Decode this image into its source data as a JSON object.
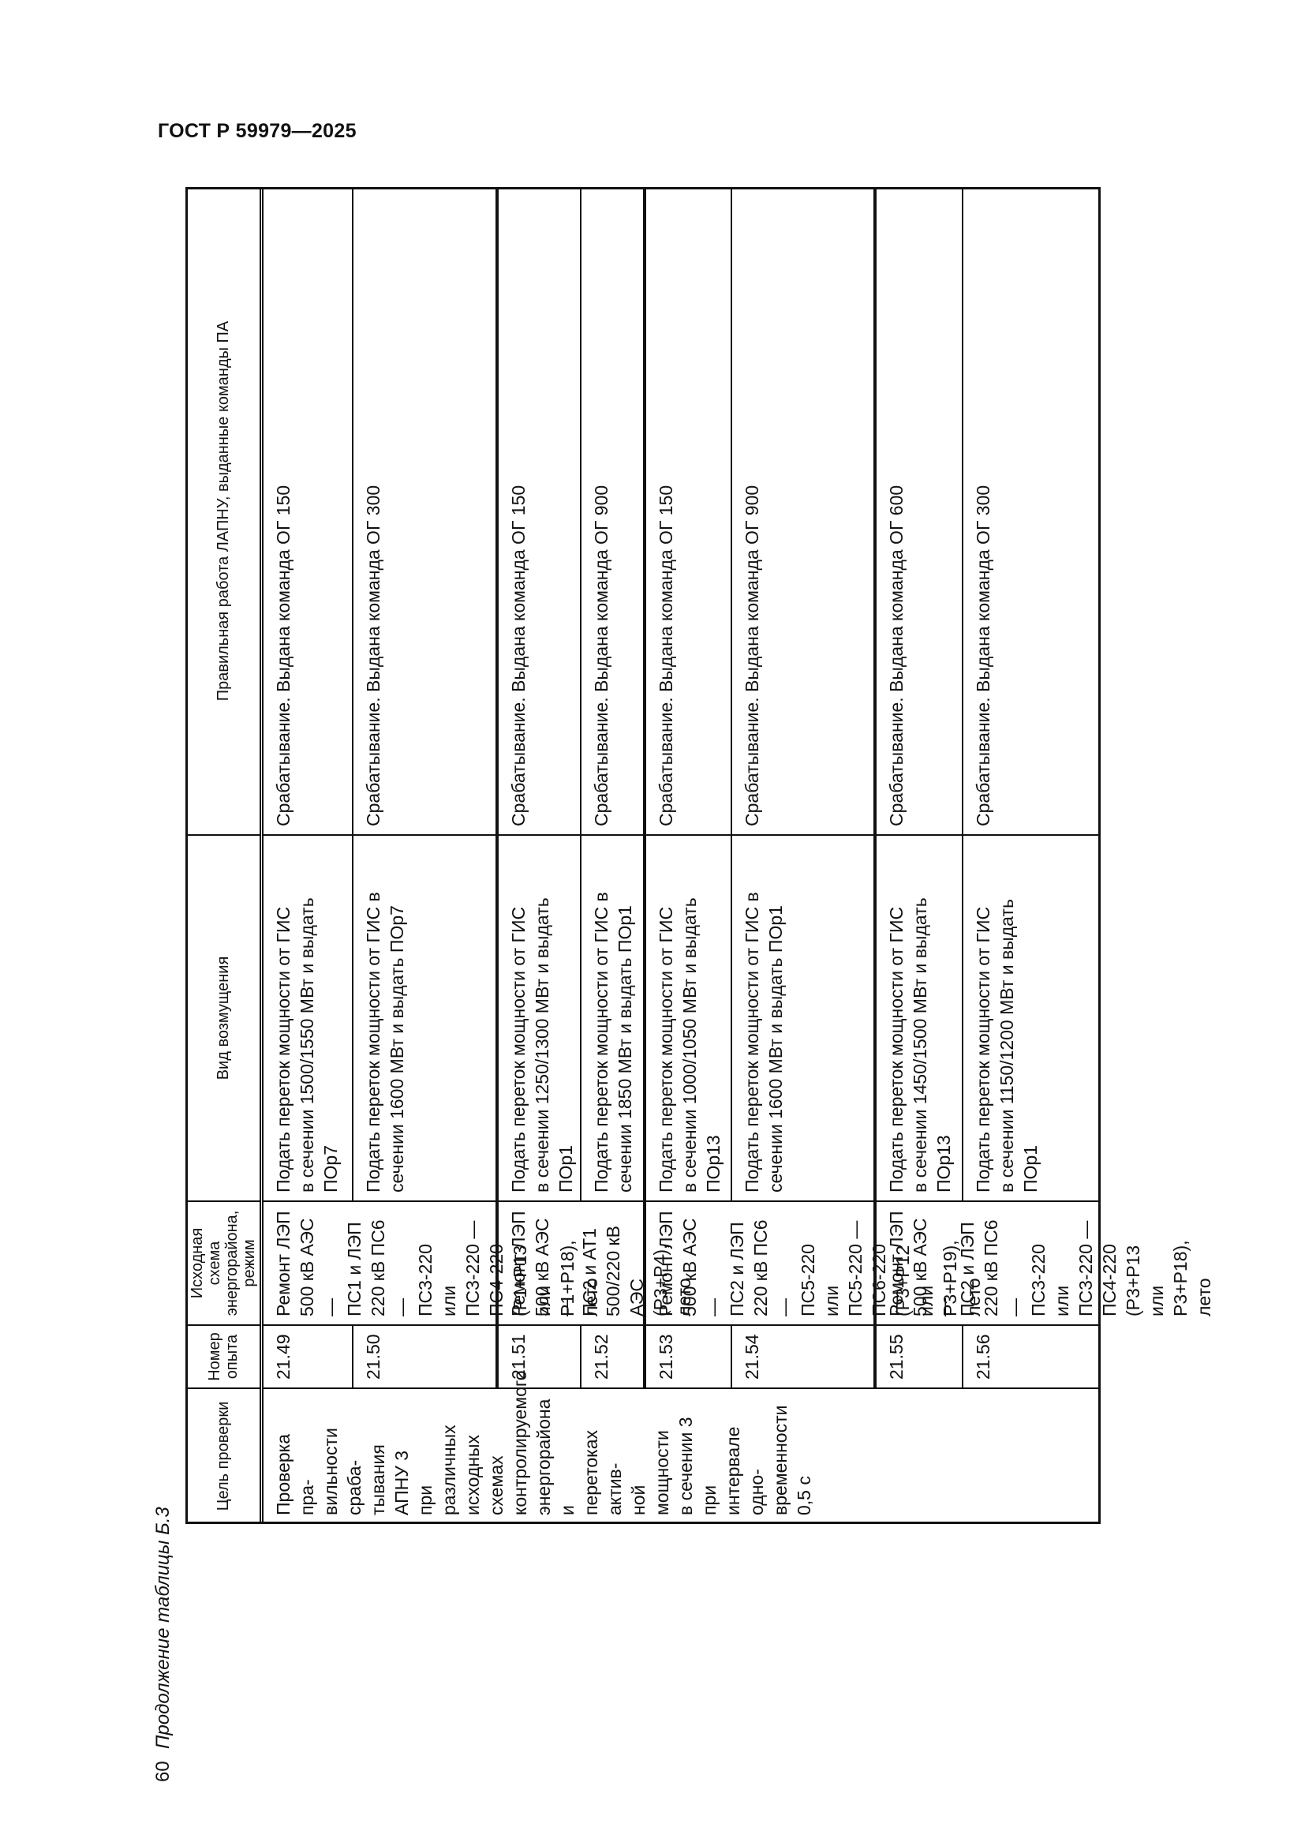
{
  "document": {
    "title": "ГОСТ Р 59979—2025",
    "page_number": "60",
    "caption": "Продолжение таблицы Б.3"
  },
  "table": {
    "headers": [
      "Цель проверки",
      "Номер опыта",
      "Исходная схема энергорайона, режим",
      "Вид возмущения",
      "Правильная работа ЛАПНУ, выданные команды ПА"
    ],
    "purpose": "Проверка пра-\nвильности сраба-\nтывания АПНУ 3\nпри различных\nисходных схемах\nконтролируемого\nэнергорайона и\nперетоках актив-\nной мощности\nв сечении 3 при\nинтервале одно-\nвременности\n0,5 с",
    "schemes": [
      "Ремонт ЛЭП\n500 кВ АЭС —\nПС1 и ЛЭП\n220 кВ ПС6—\nПС3-220 или\nПС3-220 —\nПС4-220 (Р1+Р13\nили Р1+Р18),\nлето",
      "Ремонт ЛЭП\n500 кВ АЭС —\nПС2 и АТ1\n500/220 кВ АЭС\n(Р3+Р4), лето",
      "Ремонт ЛЭП\n500 кВ АЭС —\nПС2 и ЛЭП\n220 кВ ПС6—\nПС5-220 или\nПС5-220 —\nПС6-220 (Р3+Р12\nили Р3+Р19),\nлето",
      "Ремонт ЛЭП\n500 кВ АЭС —\nПС2 и ЛЭП\n220 кВ ПС6—\nПС3-220 или\nПС3-220 —\nПС4-220 (Р3+Р13\nили Р3+Р18),\nлето"
    ],
    "rows": [
      {
        "number": "21.49",
        "disturbance": "Подать переток мощности от ГИС\nв сечении 1500/1550 МВт и выдать\nПОр7",
        "result": "Срабатывание. Выдана команда ОГ 150"
      },
      {
        "number": "21.50",
        "disturbance": "Подать переток мощности от ГИС в\nсечении 1600 МВт и выдать ПОр7",
        "result": "Срабатывание. Выдана команда ОГ 300"
      },
      {
        "number": "21.51",
        "disturbance": "Подать переток мощности от ГИС\nв сечении 1250/1300 МВт и выдать\nПОр1",
        "result": "Срабатывание. Выдана команда ОГ 150"
      },
      {
        "number": "21.52",
        "disturbance": "Подать переток мощности от ГИС в\nсечении 1850 МВт и выдать ПОр1",
        "result": "Срабатывание. Выдана команда ОГ 900"
      },
      {
        "number": "21.53",
        "disturbance": "Подать переток мощности от ГИС\nв сечении 1000/1050 МВт и выдать\nПОр13",
        "result": "Срабатывание. Выдана команда ОГ 150"
      },
      {
        "number": "21.54",
        "disturbance": "Подать переток мощности от ГИС в\nсечении 1600 МВт и выдать ПОр1",
        "result": "Срабатывание. Выдана команда ОГ 900"
      },
      {
        "number": "21.55",
        "disturbance": "Подать переток мощности от ГИС\nв сечении 1450/1500 МВт и выдать\nПОр13",
        "result": "Срабатывание. Выдана команда ОГ 600"
      },
      {
        "number": "21.56",
        "disturbance": "Подать переток мощности от ГИС\nв сечении 1150/1200 МВт и выдать\nПОр1",
        "result": "Срабатывание. Выдана команда ОГ 300"
      }
    ]
  }
}
